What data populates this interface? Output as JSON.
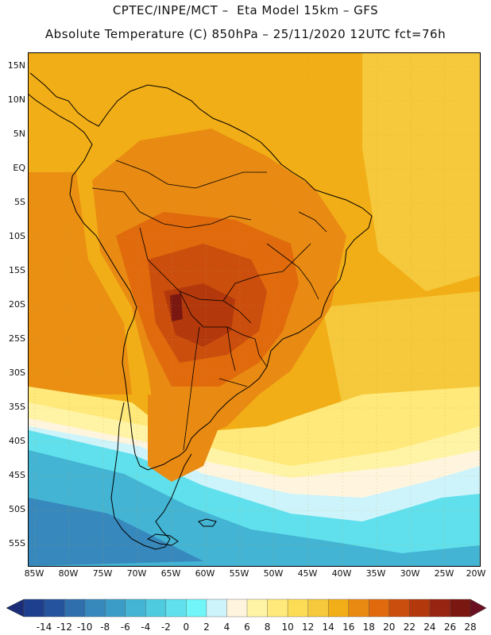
{
  "title": {
    "line1": "CPTEC/INPE/MCT –  Eta Model 15km – GFS",
    "line2": "Absolute Temperature (C) 850hPa – 25/11/2020 12UTC fct=76h"
  },
  "map": {
    "lat_labels": [
      "15N",
      "10N",
      "5N",
      "EQ",
      "5S",
      "10S",
      "15S",
      "20S",
      "25S",
      "30S",
      "35S",
      "40S",
      "45S",
      "50S",
      "55S"
    ],
    "lon_labels": [
      "85W",
      "80W",
      "75W",
      "70W",
      "65W",
      "60W",
      "55W",
      "50W",
      "45W",
      "40W",
      "35W",
      "30W",
      "25W",
      "20W"
    ],
    "lat_range": [
      -58,
      17
    ],
    "lon_range": [
      -86,
      -20
    ]
  },
  "colorbar": {
    "labels": [
      "-14",
      "-12",
      "-10",
      "-8",
      "-6",
      "-4",
      "-2",
      "0",
      "2",
      "4",
      "6",
      "8",
      "10",
      "12",
      "14",
      "16",
      "18",
      "20",
      "22",
      "24",
      "26",
      "28"
    ],
    "colors": [
      "#1e3f8e",
      "#25539d",
      "#2f6fad",
      "#3788bc",
      "#3b9dc7",
      "#43b4d4",
      "#4fcbe0",
      "#60e0ec",
      "#70f5f8",
      "#cdf4fb",
      "#fff5de",
      "#fff4a6",
      "#ffe97a",
      "#fddc55",
      "#f5c93b",
      "#f2ae16",
      "#e98a12",
      "#e06a0c",
      "#cb4e0d",
      "#b3380c",
      "#972410",
      "#7a1711"
    ],
    "under_color": "#1a2e78",
    "over_color": "#6a0f22"
  }
}
